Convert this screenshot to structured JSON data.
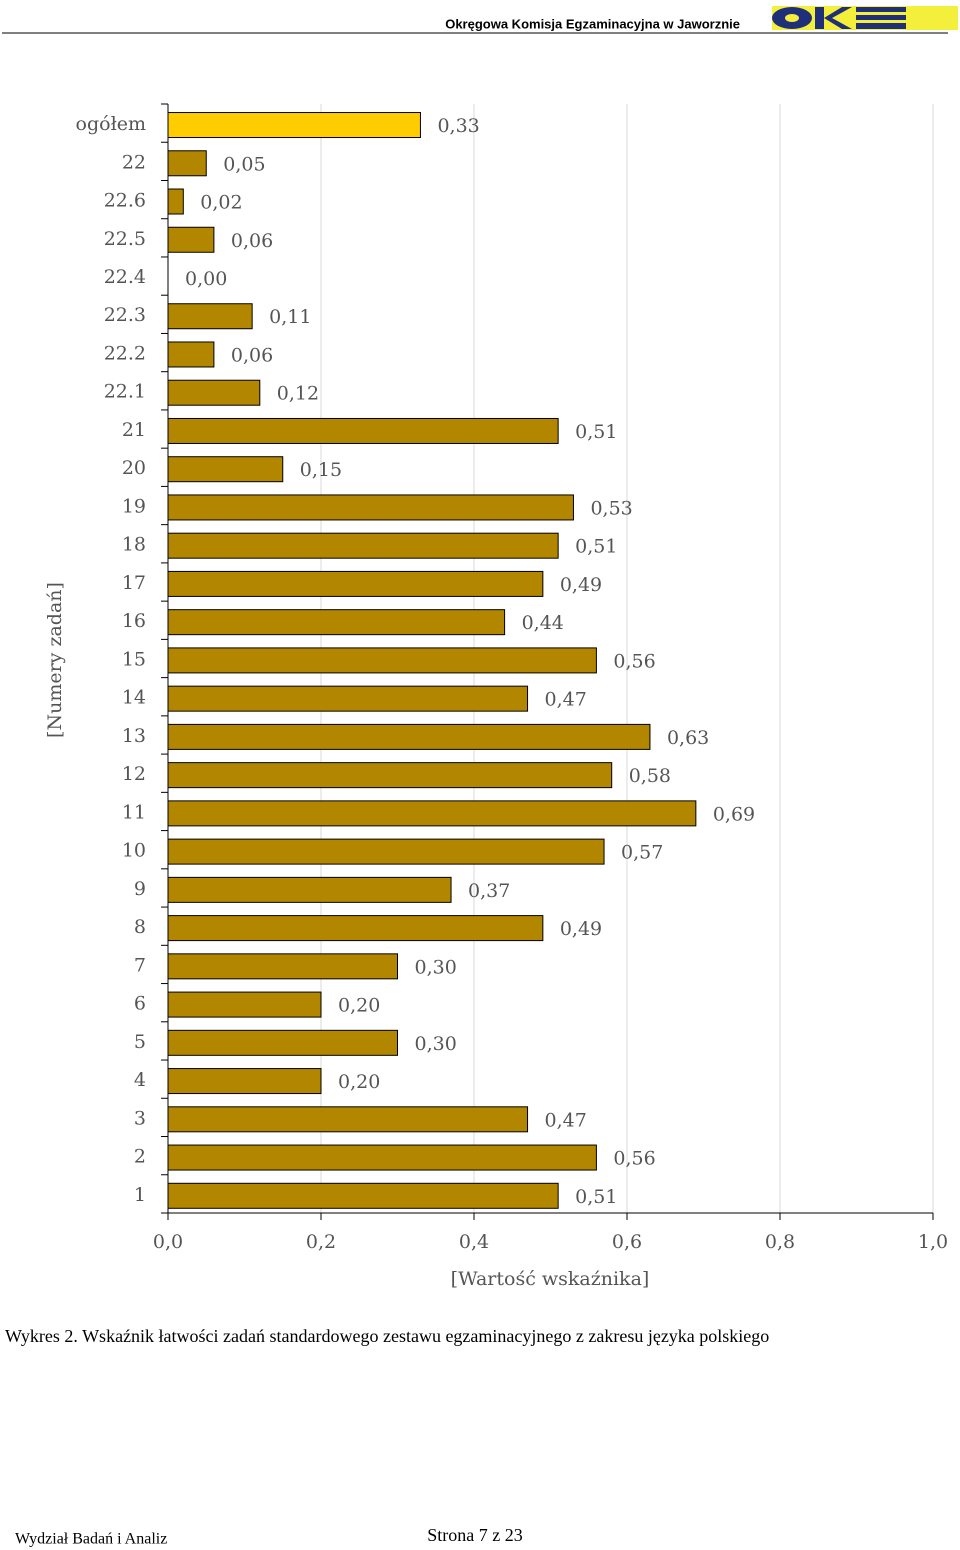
{
  "header": {
    "title": "Okręgowa Komisja Egzaminacyjna w Jaworznie"
  },
  "chart_data": {
    "type": "barh",
    "categories": [
      "ogółem",
      "22",
      "22.6",
      "22.5",
      "22.4",
      "22.3",
      "22.2",
      "22.1",
      "21",
      "20",
      "19",
      "18",
      "17",
      "16",
      "15",
      "14",
      "13",
      "12",
      "11",
      "10",
      "9",
      "8",
      "7",
      "6",
      "5",
      "4",
      "3",
      "2",
      "1"
    ],
    "values": [
      0.33,
      0.05,
      0.02,
      0.06,
      0.0,
      0.11,
      0.06,
      0.12,
      0.51,
      0.15,
      0.53,
      0.51,
      0.49,
      0.44,
      0.56,
      0.47,
      0.63,
      0.58,
      0.69,
      0.57,
      0.37,
      0.49,
      0.3,
      0.2,
      0.3,
      0.2,
      0.47,
      0.56,
      0.51
    ],
    "value_labels": [
      "0,33",
      "0,05",
      "0,02",
      "0,06",
      "0,00",
      "0,11",
      "0,06",
      "0,12",
      "0,51",
      "0,15",
      "0,53",
      "0,51",
      "0,49",
      "0,44",
      "0,56",
      "0,47",
      "0,63",
      "0,58",
      "0,69",
      "0,57",
      "0,37",
      "0,49",
      "0,30",
      "0,20",
      "0,30",
      "0,20",
      "0,47",
      "0,56",
      "0,51"
    ],
    "colors": [
      "#ffcc00",
      "#b38600",
      "#b38600",
      "#b38600",
      "#b38600",
      "#b38600",
      "#b38600",
      "#b38600",
      "#b38600",
      "#b38600",
      "#b38600",
      "#b38600",
      "#b38600",
      "#b38600",
      "#b38600",
      "#b38600",
      "#b38600",
      "#b38600",
      "#b38600",
      "#b38600",
      "#b38600",
      "#b38600",
      "#b38600",
      "#b38600",
      "#b38600",
      "#b38600",
      "#b38600",
      "#b38600",
      "#b38600"
    ],
    "xlim": [
      0,
      1
    ],
    "xticks": [
      {
        "value": 0,
        "label": "0,0"
      },
      {
        "value": 0.2,
        "label": "0,2"
      },
      {
        "value": 0.4,
        "label": "0,4"
      },
      {
        "value": 0.6,
        "label": "0,6"
      },
      {
        "value": 0.8,
        "label": "0,8"
      },
      {
        "value": 1,
        "label": "1,0"
      }
    ],
    "grid": true,
    "xlabel": "[Wartość wskaźnika]",
    "ylabel": "[Numery zadań]"
  },
  "caption": "Wykres 2. Wskaźnik łatwości zadań standardowego zestawu egzaminacyjnego z zakresu języka polskiego",
  "footer": {
    "left": "Wydział Badań i Analiz",
    "page": "Strona 7 z 23"
  }
}
